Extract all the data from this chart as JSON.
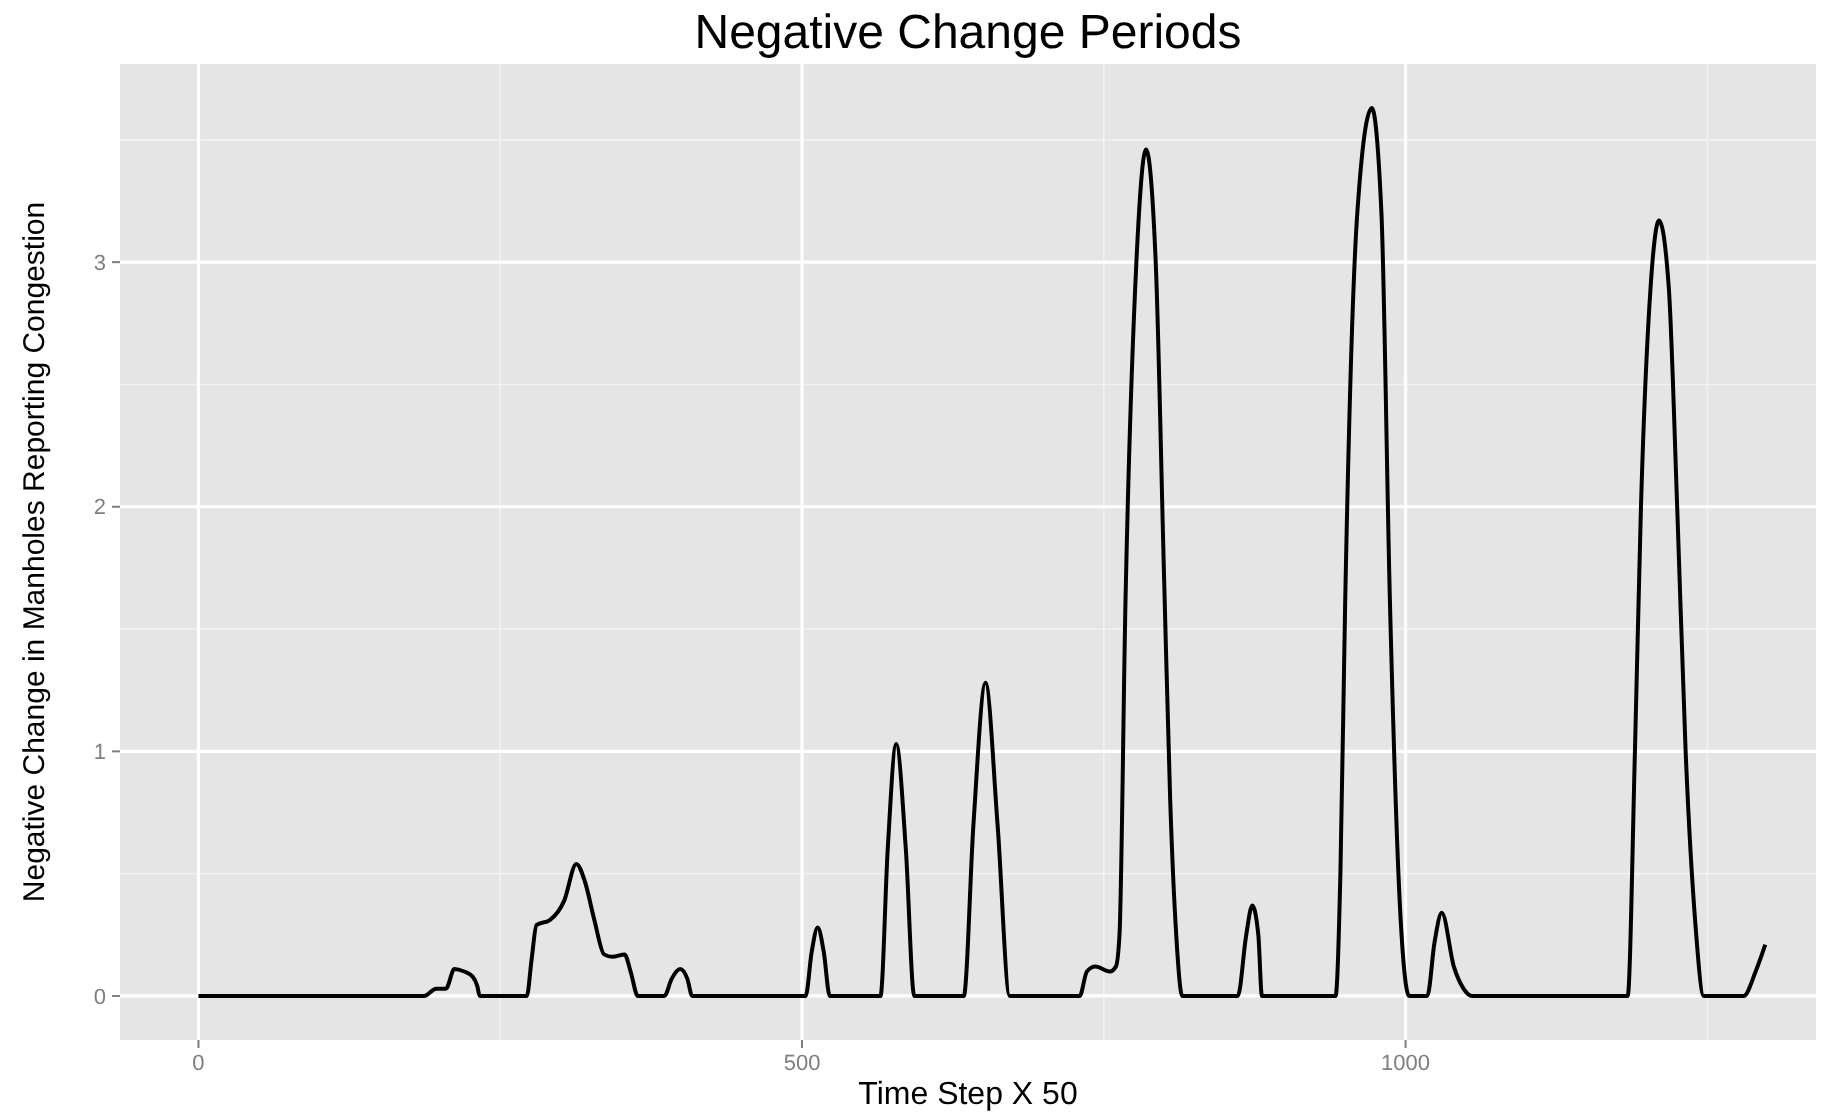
{
  "chart_data": {
    "type": "line",
    "title": "Negative Change Periods",
    "xlabel": "Time Step X 50",
    "ylabel": "Negative Change in Manholes Reporting Congestion",
    "x": [
      0,
      187,
      197,
      205,
      212,
      220,
      227,
      231,
      233,
      272,
      276,
      280,
      291,
      303,
      313,
      320,
      328,
      336,
      343,
      353,
      358,
      364,
      386,
      392,
      399,
      405,
      409,
      503,
      508,
      513,
      518,
      523,
      565,
      571,
      578,
      586,
      593,
      634,
      642,
      652,
      662,
      672,
      730,
      736,
      743,
      755,
      760,
      763,
      768,
      777,
      785,
      793,
      800,
      805,
      810,
      815,
      861,
      868,
      873,
      878,
      881,
      942,
      946,
      950,
      960,
      972,
      980,
      987,
      995,
      1003,
      1018,
      1024,
      1030,
      1040,
      1048,
      1055,
      1184,
      1190,
      1195,
      1203,
      1210,
      1218,
      1225,
      1232,
      1240,
      1247,
      1280,
      1290,
      1298
    ],
    "series": [
      {
        "color": "#000000",
        "values": [
          0,
          0,
          0.03,
          0.03,
          0.11,
          0.1,
          0.08,
          0.04,
          0,
          0,
          0.15,
          0.29,
          0.31,
          0.39,
          0.54,
          0.47,
          0.31,
          0.17,
          0.16,
          0.17,
          0.1,
          0,
          0,
          0.07,
          0.11,
          0.07,
          0,
          0,
          0.18,
          0.28,
          0.18,
          0,
          0,
          0.6,
          1.03,
          0.6,
          0,
          0,
          0.7,
          1.28,
          0.7,
          0,
          0,
          0.1,
          0.12,
          0.1,
          0.12,
          0.25,
          1.62,
          3.0,
          3.46,
          3.0,
          1.7,
          0.8,
          0.25,
          0,
          0,
          0.25,
          0.37,
          0.25,
          0,
          0,
          0.5,
          1.62,
          3.2,
          3.63,
          3.2,
          1.62,
          0.4,
          0,
          0,
          0.22,
          0.34,
          0.12,
          0.03,
          0,
          0,
          1.0,
          2.0,
          2.9,
          3.17,
          2.9,
          2.0,
          1.0,
          0.3,
          0,
          0,
          0.1,
          0.21
        ]
      }
    ],
    "xlim": [
      -65,
      1340
    ],
    "ylim": [
      -0.18,
      3.81
    ],
    "xticks": [
      0,
      500,
      1000
    ],
    "yticks": [
      0,
      1,
      2,
      3
    ],
    "grid": true
  }
}
